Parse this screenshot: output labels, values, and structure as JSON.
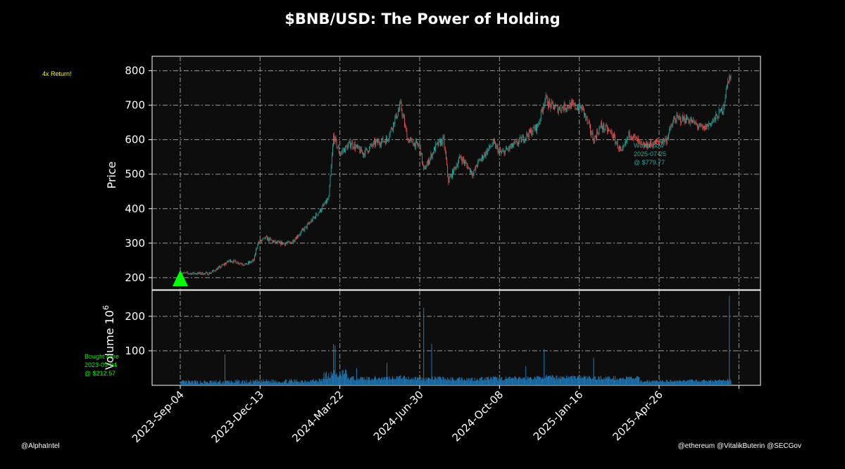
{
  "chart_data": {
    "type": "candlestick",
    "title": "$BNB/USD: The Power of Holding",
    "price_panel": {
      "ylabel": "Price",
      "yticks": [
        200,
        300,
        400,
        500,
        600,
        700,
        800
      ],
      "ylim": [
        165,
        842
      ],
      "grid": true
    },
    "volume_panel": {
      "ylabel": "Volume  10",
      "ylabel_exponent": "6",
      "yticks": [
        100,
        200
      ],
      "ylim": [
        0,
        275
      ],
      "grid": true
    },
    "x_start": "2023-09-04",
    "x_end": "2025-07-25",
    "xticks": [
      "2023-Sep-04",
      "2023-Dec-13",
      "2024-Mar-22",
      "2024-Jun-30",
      "2024-Oct-08",
      "2025-Jan-16",
      "2025-Apr-26"
    ],
    "colors": {
      "up": "#26a69a",
      "down": "#ef5350",
      "volume": "#1f77b4",
      "buy_marker": "#00ff00",
      "return_text": "#ffff00"
    },
    "price_keypoints": [
      [
        "2023-09-04",
        212.57
      ],
      [
        "2023-10-10",
        212
      ],
      [
        "2023-10-25",
        232
      ],
      [
        "2023-11-05",
        250
      ],
      [
        "2023-11-25",
        238
      ],
      [
        "2023-12-05",
        250
      ],
      [
        "2023-12-10",
        300
      ],
      [
        "2023-12-20",
        315
      ],
      [
        "2024-01-03",
        300
      ],
      [
        "2024-01-20",
        300
      ],
      [
        "2024-02-10",
        350
      ],
      [
        "2024-02-28",
        400
      ],
      [
        "2024-03-08",
        430
      ],
      [
        "2024-03-14",
        610
      ],
      [
        "2024-03-22",
        560
      ],
      [
        "2024-04-05",
        590
      ],
      [
        "2024-04-20",
        560
      ],
      [
        "2024-05-05",
        590
      ],
      [
        "2024-05-20",
        600
      ],
      [
        "2024-06-06",
        700
      ],
      [
        "2024-06-15",
        600
      ],
      [
        "2024-06-30",
        580
      ],
      [
        "2024-07-05",
        510
      ],
      [
        "2024-07-20",
        580
      ],
      [
        "2024-07-30",
        600
      ],
      [
        "2024-08-05",
        480
      ],
      [
        "2024-08-20",
        550
      ],
      [
        "2024-09-05",
        500
      ],
      [
        "2024-09-10",
        530
      ],
      [
        "2024-09-30",
        590
      ],
      [
        "2024-10-10",
        560
      ],
      [
        "2024-10-30",
        590
      ],
      [
        "2024-11-15",
        620
      ],
      [
        "2024-11-25",
        640
      ],
      [
        "2024-12-04",
        720
      ],
      [
        "2024-12-10",
        700
      ],
      [
        "2024-12-20",
        690
      ],
      [
        "2025-01-05",
        700
      ],
      [
        "2025-01-20",
        690
      ],
      [
        "2025-02-03",
        600
      ],
      [
        "2025-02-12",
        640
      ],
      [
        "2025-02-25",
        620
      ],
      [
        "2025-03-10",
        560
      ],
      [
        "2025-03-20",
        620
      ],
      [
        "2025-04-05",
        580
      ],
      [
        "2025-04-20",
        590
      ],
      [
        "2025-05-05",
        600
      ],
      [
        "2025-05-15",
        660
      ],
      [
        "2025-06-01",
        660
      ],
      [
        "2025-06-20",
        630
      ],
      [
        "2025-07-05",
        660
      ],
      [
        "2025-07-15",
        690
      ],
      [
        "2025-07-22",
        780
      ],
      [
        "2025-07-25",
        779.77
      ]
    ],
    "volume_spikes": [
      [
        "2023-10-30",
        90
      ],
      [
        "2024-03-14",
        120
      ],
      [
        "2024-03-16",
        115
      ],
      [
        "2024-04-12",
        50
      ],
      [
        "2024-05-20",
        65
      ],
      [
        "2024-07-05",
        225
      ],
      [
        "2024-07-15",
        120
      ],
      [
        "2024-12-03",
        105
      ],
      [
        "2024-11-10",
        55
      ],
      [
        "2025-02-03",
        80
      ],
      [
        "2025-07-23",
        260
      ]
    ],
    "annotations": {
      "buy": {
        "line1": "Bought here",
        "line2": "2023-09-04",
        "line3": "@ $212.57"
      },
      "return": "4x Return!",
      "worth": {
        "line1": "Worth now",
        "line2": "2025-07-25",
        "line3": "@ $779.77"
      }
    }
  },
  "footer": {
    "left": "@AlphaIntel",
    "right": "@ethereum @VitalikButerin @SECGov"
  }
}
